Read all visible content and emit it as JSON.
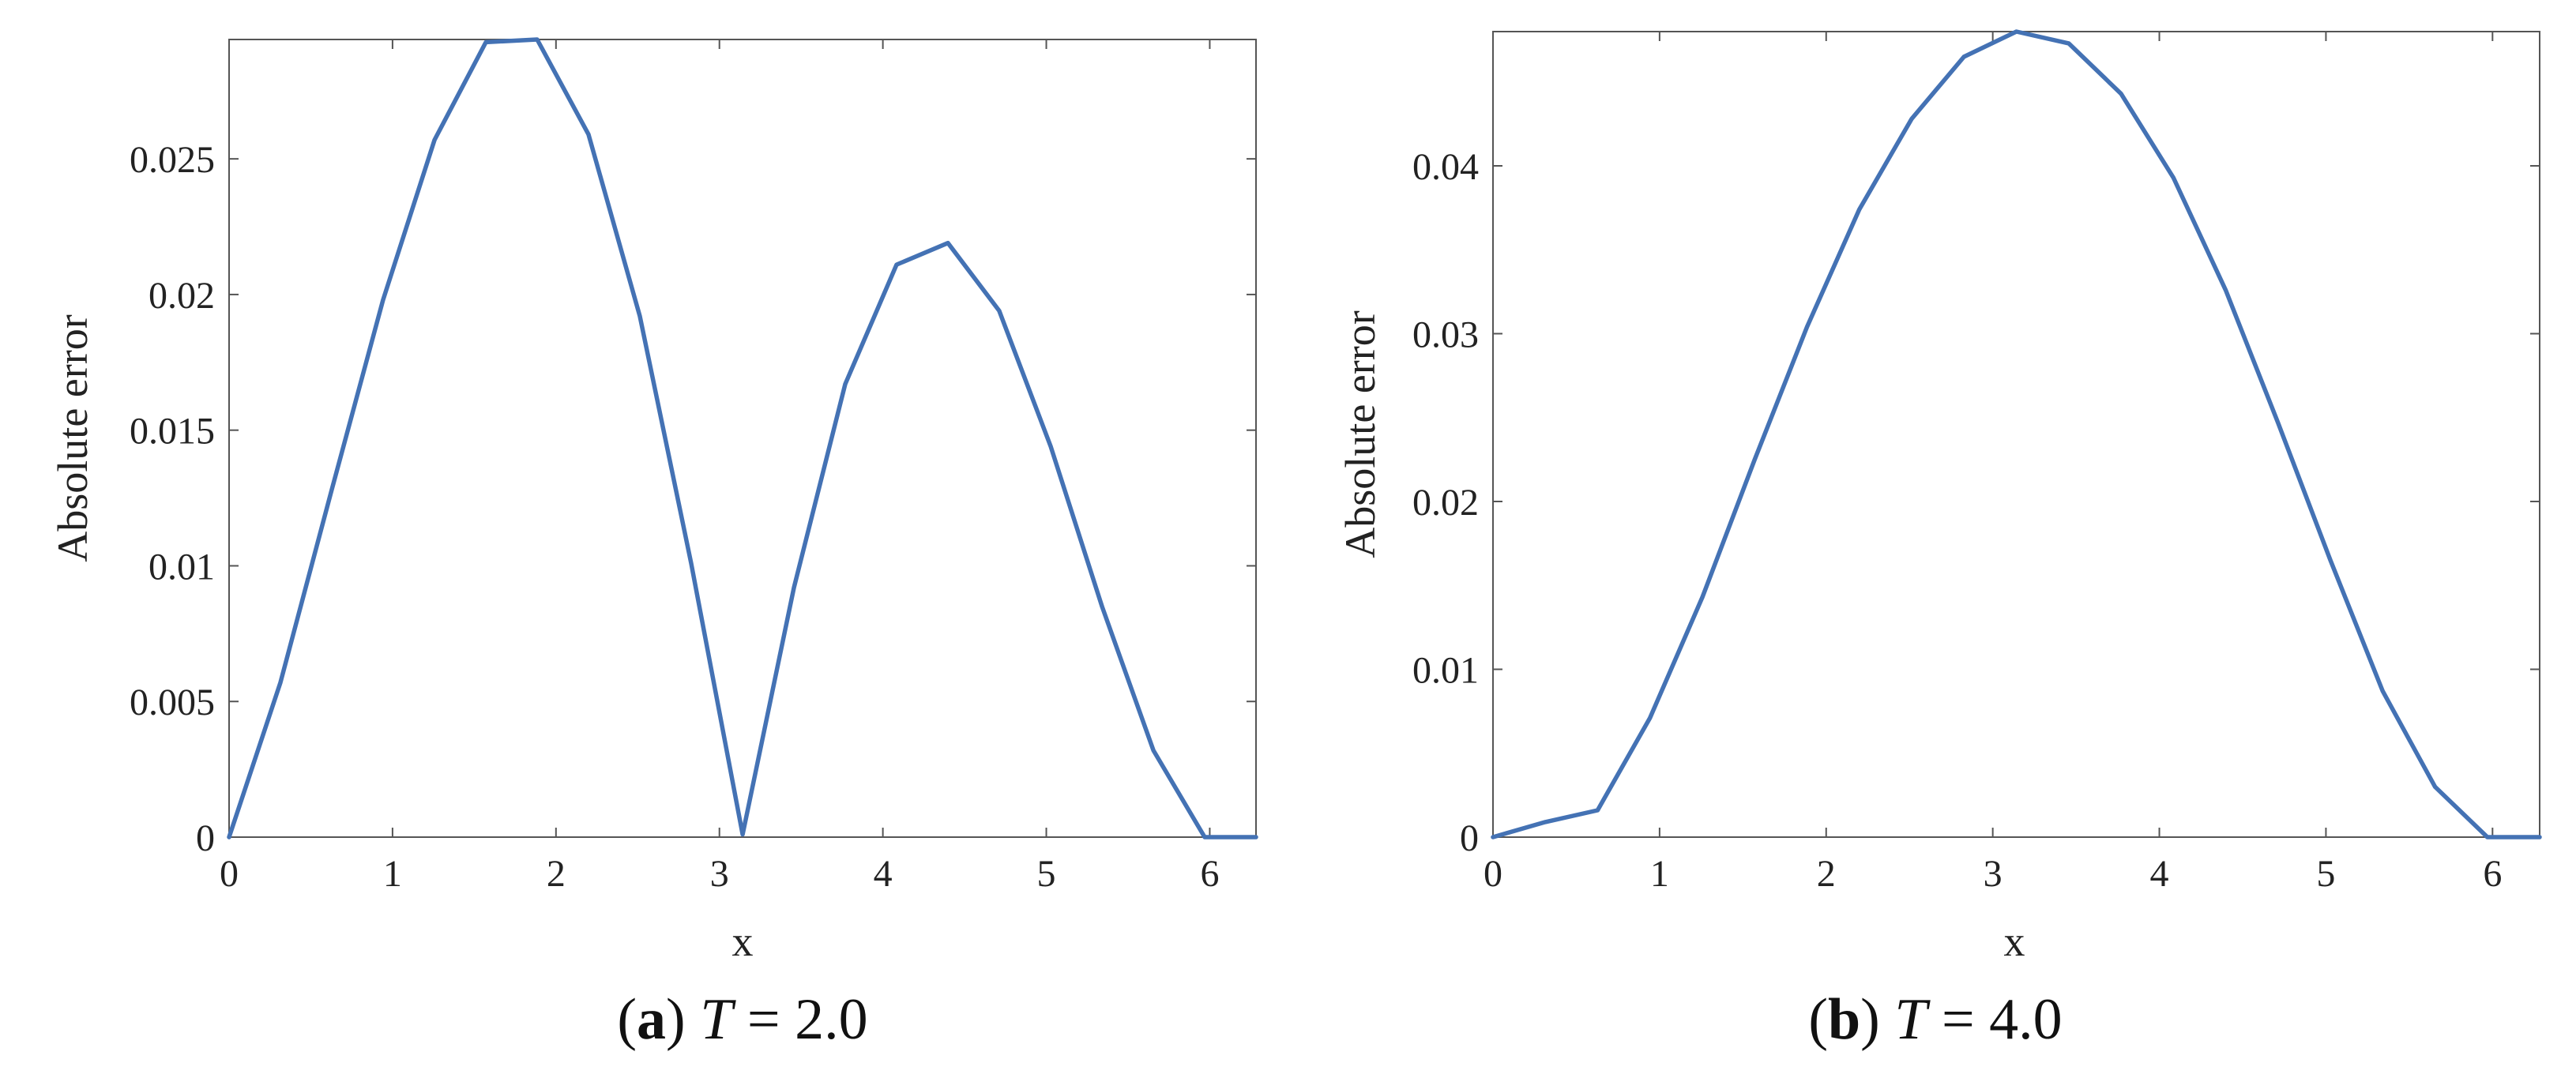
{
  "chart_data": [
    {
      "type": "line",
      "id": "a",
      "caption_letter": "a",
      "caption_var": "T",
      "caption_rest": " = 2.0",
      "xlabel": "x",
      "ylabel": "Absolute error",
      "xlim": [
        0,
        6.283
      ],
      "ylim": [
        0,
        0.0294
      ],
      "xticks": [
        0,
        1,
        2,
        3,
        4,
        5,
        6
      ],
      "xtick_labels": [
        "0",
        "1",
        "2",
        "3",
        "4",
        "5",
        "6"
      ],
      "yticks": [
        0,
        0.005,
        0.01,
        0.015,
        0.02,
        0.025
      ],
      "ytick_labels": [
        "0",
        "0.005",
        "0.01",
        "0.015",
        "0.02",
        "0.025"
      ],
      "color": "#4472b4",
      "series": [
        {
          "name": "Absolute error",
          "x": [
            0,
            0.314,
            0.628,
            0.942,
            1.257,
            1.571,
            1.885,
            2.199,
            2.513,
            2.827,
            3.142,
            3.456,
            3.77,
            4.084,
            4.398,
            4.712,
            5.027,
            5.341,
            5.655,
            5.969,
            6.283
          ],
          "y": [
            0,
            0.0057,
            0.0128,
            0.0198,
            0.0257,
            0.0293,
            0.0294,
            0.0259,
            0.0192,
            0.0101,
            0.0001,
            0.0092,
            0.0167,
            0.0211,
            0.0219,
            0.0194,
            0.0144,
            0.0085,
            0.0032,
            0.0,
            0.0
          ]
        }
      ]
    },
    {
      "type": "line",
      "id": "b",
      "caption_letter": "b",
      "caption_var": "T",
      "caption_rest": " = 4.0",
      "xlabel": "x",
      "ylabel": "Absolute error",
      "xlim": [
        0,
        6.283
      ],
      "ylim": [
        0,
        0.048
      ],
      "xticks": [
        0,
        1,
        2,
        3,
        4,
        5,
        6
      ],
      "xtick_labels": [
        "0",
        "1",
        "2",
        "3",
        "4",
        "5",
        "6"
      ],
      "yticks": [
        0,
        0.01,
        0.02,
        0.03,
        0.04
      ],
      "ytick_labels": [
        "0",
        "0.01",
        "0.02",
        "0.03",
        "0.04"
      ],
      "color": "#4472b4",
      "series": [
        {
          "name": "Absolute error",
          "x": [
            0,
            0.314,
            0.628,
            0.942,
            1.257,
            1.571,
            1.885,
            2.199,
            2.513,
            2.827,
            3.142,
            3.456,
            3.77,
            4.084,
            4.398,
            4.712,
            5.027,
            5.341,
            5.655,
            5.969,
            6.283
          ],
          "y": [
            0,
            0.0009,
            0.0016,
            0.0071,
            0.0143,
            0.0225,
            0.0304,
            0.0374,
            0.0428,
            0.0465,
            0.048,
            0.0473,
            0.0443,
            0.0393,
            0.0326,
            0.0247,
            0.0165,
            0.0087,
            0.003,
            0.0,
            0.0
          ]
        }
      ]
    }
  ]
}
